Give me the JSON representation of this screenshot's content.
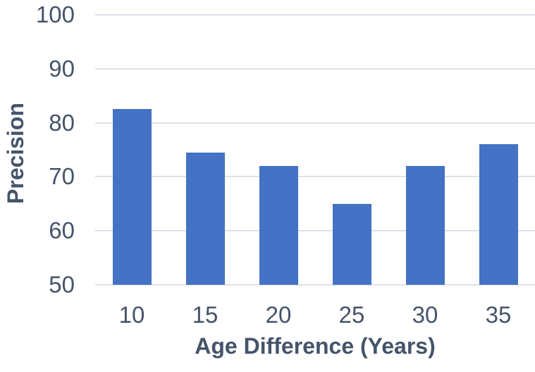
{
  "chart_data": {
    "type": "bar",
    "categories": [
      "10",
      "15",
      "20",
      "25",
      "30",
      "35"
    ],
    "values": [
      82.5,
      74.5,
      72,
      65,
      72,
      76
    ],
    "title": "",
    "xlabel": "Age Difference (Years)",
    "ylabel": "Precision",
    "ylim": [
      50,
      100
    ],
    "yticks": [
      50,
      60,
      70,
      80,
      90,
      100
    ],
    "grid": true,
    "legend_position": "none",
    "bar_color": "#4472C4",
    "gridline_color": "#DDE1E9",
    "text_color": "#44546A",
    "background_color": "#FFFFFF"
  }
}
